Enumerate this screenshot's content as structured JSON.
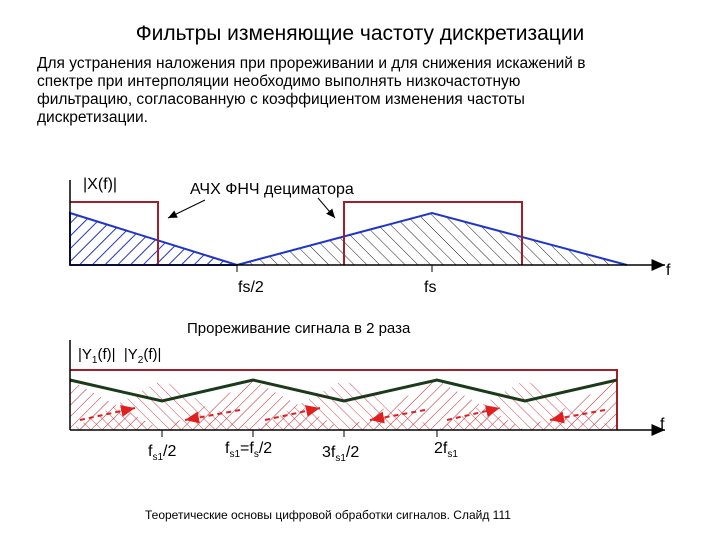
{
  "title": "Фильтры изменяющие частоту дискретизации",
  "intro_lines": [
    "Для устранения наложения при прореживании и для снижения искажений в",
    "спектре при интерполяции необходимо выполнять низкочастотную",
    "фильтрацию, согласованную с коэффициентом изменения частоты",
    "дискретизации."
  ],
  "top_plot": {
    "y_label": "|X(f)|",
    "filter_label": "АЧХ ФНЧ дециматора",
    "x_axis_label": "f",
    "tick_fs2": "fs/2",
    "tick_fs": "fs"
  },
  "bottom_plot": {
    "caption": "Прореживание сигнала в 2 раза",
    "y_label_1": "|Y",
    "y_label_1_sub": "1",
    "y_label_1_tail": "(f)|",
    "y_label_2": "|Y",
    "y_label_2_sub": "2",
    "y_label_2_tail": "(f)|",
    "x_axis_label": "f",
    "tick1_main": "f",
    "tick1_sub": "s1",
    "tick1_tail": "/2",
    "tick2_main": "f",
    "tick2_sub": "s1",
    "tick2_mid": "=f",
    "tick2_sub2": "s",
    "tick2_tail": "/2",
    "tick3_main": "3f",
    "tick3_sub": "s1",
    "tick3_tail": "/2",
    "tick4_main": "2f",
    "tick4_sub": "s1"
  },
  "colors": {
    "axis": "#000000",
    "spectrum_blue": "#1f35c8",
    "filter_red": "#a0202a",
    "aliased_red": "#e02020",
    "envelope_green": "#1b3a1b"
  },
  "footer": "Теоретические основы цифровой обработки сигналов.  Слайд  111"
}
